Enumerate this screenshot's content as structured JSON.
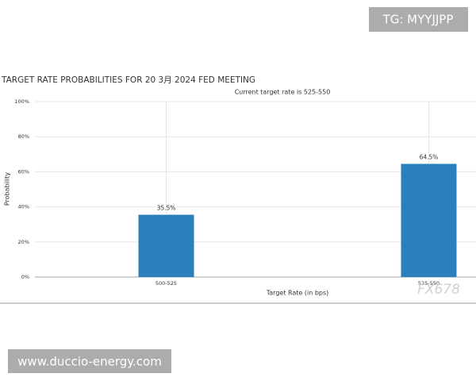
{
  "chart_data": {
    "type": "bar",
    "title": "TARGET RATE PROBABILITIES FOR 20 3月 2024 FED MEETING",
    "subtitle": "Current target rate is 525-550",
    "x_label": "Target Rate (in bps)",
    "y_label": "Probability",
    "categories": [
      "500-525",
      "525-550"
    ],
    "values": [
      35.5,
      64.5
    ],
    "value_labels": [
      "35.5%",
      "64.5%"
    ],
    "color": "#2b7fba",
    "ylim": [
      0,
      100
    ],
    "yticks": [
      {
        "value": 0,
        "label": "0%"
      },
      {
        "value": 20,
        "label": "20%"
      },
      {
        "value": 40,
        "label": "40%"
      },
      {
        "value": 60,
        "label": "60%"
      },
      {
        "value": 80,
        "label": "80%"
      },
      {
        "value": 100,
        "label": "100%"
      }
    ],
    "grid": true
  },
  "watermarks": {
    "top": "TG: MYYJJPP",
    "corner": "FX678",
    "bottom": "www.duccio-energy.com"
  }
}
